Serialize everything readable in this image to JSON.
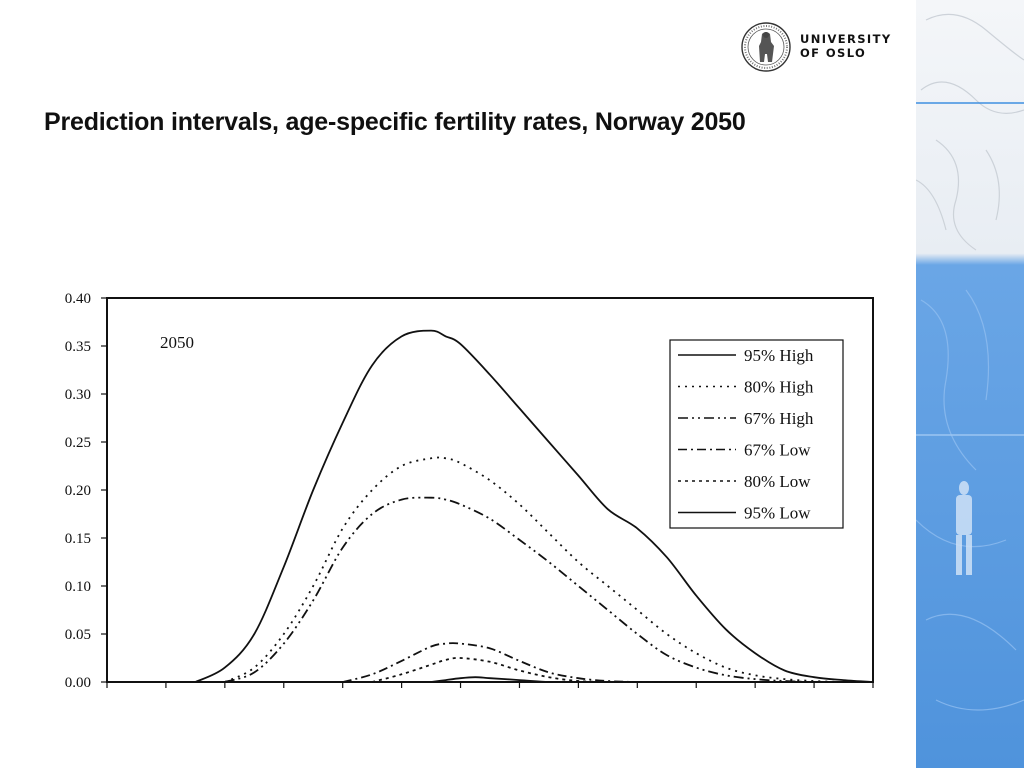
{
  "slide": {
    "title": "Prediction intervals, age-specific fertility rates, Norway 2050"
  },
  "logo": {
    "line1": "UNIVERSITY",
    "line2": "OF OSLO",
    "icon": "university-seal-icon"
  },
  "colors": {
    "sidebar_blue": "#5b9be0",
    "sidebar_line": "#3f8fe0",
    "ink": "#111111"
  },
  "chart_data": {
    "type": "line",
    "annotation": "2050",
    "ylim": [
      0,
      0.4
    ],
    "xlim": [
      0,
      13
    ],
    "y_ticks": [
      "0.00",
      "0.05",
      "0.10",
      "0.15",
      "0.20",
      "0.25",
      "0.30",
      "0.35",
      "0.40"
    ],
    "x_tick_count": 14,
    "grid": false,
    "legend_position": "top-right",
    "series": [
      {
        "name": "95% High",
        "dash": "solid",
        "x": [
          1.5,
          2,
          2.5,
          3,
          3.5,
          4,
          4.5,
          5,
          5.5,
          5.75,
          6,
          6.5,
          7,
          7.5,
          8,
          8.5,
          9,
          9.5,
          10,
          10.5,
          11,
          11.5,
          12,
          12.5,
          13
        ],
        "y": [
          0.0,
          0.015,
          0.05,
          0.12,
          0.2,
          0.27,
          0.33,
          0.36,
          0.366,
          0.36,
          0.352,
          0.32,
          0.285,
          0.25,
          0.215,
          0.18,
          0.16,
          0.13,
          0.09,
          0.055,
          0.03,
          0.012,
          0.005,
          0.002,
          0.0
        ]
      },
      {
        "name": "80% High",
        "dash": "2,5",
        "x": [
          2,
          2.5,
          3,
          3.5,
          4,
          4.5,
          5,
          5.5,
          5.75,
          6,
          6.5,
          7,
          7.5,
          8,
          8.5,
          9,
          9.5,
          10,
          10.5,
          11,
          11.5,
          12,
          12.5,
          13
        ],
        "y": [
          0.0,
          0.015,
          0.05,
          0.1,
          0.16,
          0.2,
          0.225,
          0.233,
          0.233,
          0.228,
          0.21,
          0.185,
          0.155,
          0.125,
          0.1,
          0.075,
          0.05,
          0.03,
          0.015,
          0.007,
          0.003,
          0.001,
          0.0,
          0.0
        ]
      },
      {
        "name": "67% High",
        "dash": "10,4,2,4,2,4",
        "x": [
          2,
          2.5,
          3,
          3.5,
          4,
          4.5,
          5,
          5.5,
          5.75,
          6,
          6.5,
          7,
          7.5,
          8,
          8.5,
          9,
          9.5,
          10,
          10.5,
          11,
          11.5,
          12,
          12.5,
          13
        ],
        "y": [
          0.0,
          0.01,
          0.04,
          0.085,
          0.14,
          0.175,
          0.19,
          0.192,
          0.19,
          0.185,
          0.17,
          0.148,
          0.125,
          0.1,
          0.075,
          0.05,
          0.028,
          0.015,
          0.007,
          0.003,
          0.001,
          0.0,
          0.0,
          0.0
        ]
      },
      {
        "name": "67% Low",
        "dash": "9,4,2,4",
        "x": [
          4,
          4.5,
          5,
          5.5,
          5.75,
          6,
          6.5,
          7,
          7.5,
          8,
          8.5,
          9,
          9.5
        ],
        "y": [
          0.0,
          0.008,
          0.022,
          0.037,
          0.04,
          0.04,
          0.035,
          0.022,
          0.01,
          0.004,
          0.001,
          0.0,
          0.0
        ]
      },
      {
        "name": "80% Low",
        "dash": "3,4",
        "x": [
          4.5,
          5,
          5.5,
          5.75,
          6,
          6.5,
          7,
          7.5,
          8,
          8.5,
          9
        ],
        "y": [
          0.0,
          0.008,
          0.018,
          0.023,
          0.025,
          0.021,
          0.012,
          0.005,
          0.001,
          0.0,
          0.0
        ]
      },
      {
        "name": "95% Low",
        "dash": "solid",
        "x": [
          5.5,
          5.75,
          6,
          6.25,
          6.5,
          7,
          7.5,
          8
        ],
        "y": [
          0.0,
          0.002,
          0.004,
          0.005,
          0.004,
          0.002,
          0.0,
          0.0
        ]
      }
    ]
  }
}
